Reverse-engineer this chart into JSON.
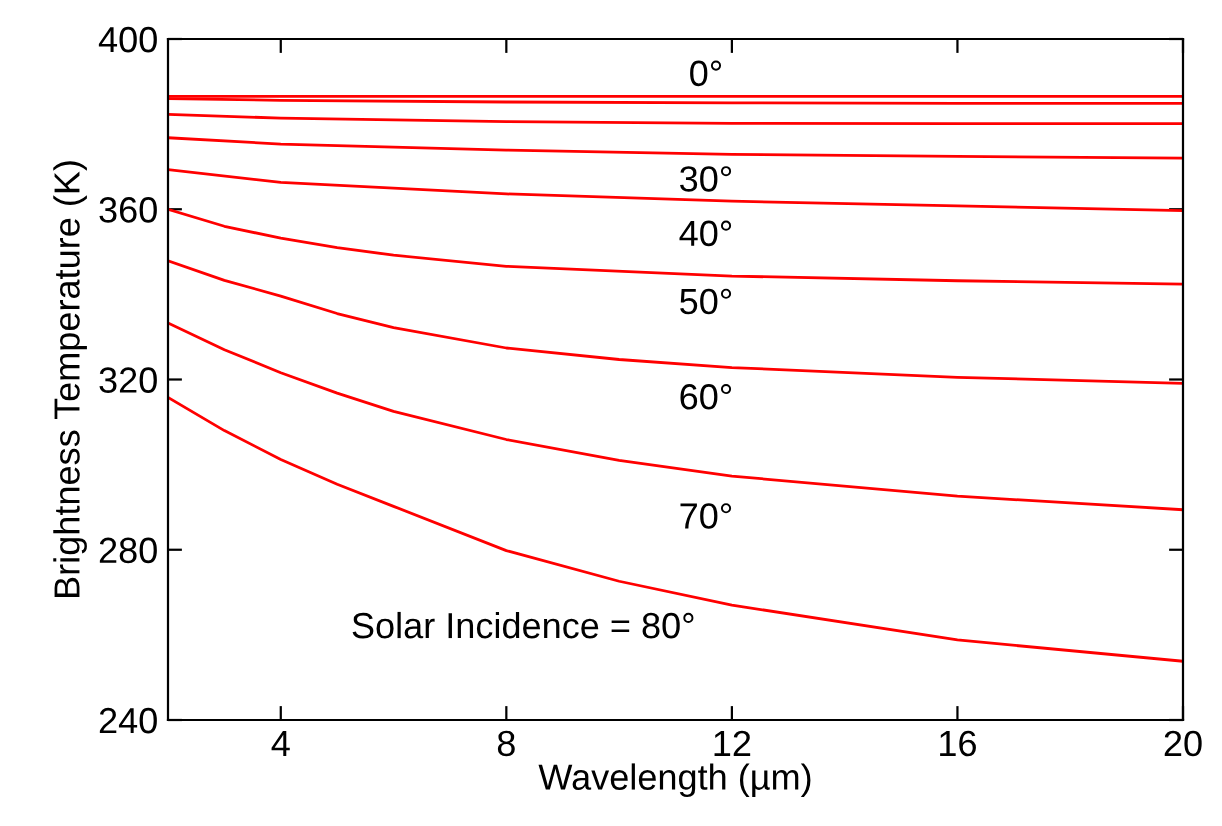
{
  "chart_data": {
    "type": "line",
    "xlabel": "Wavelength (µm)",
    "ylabel": "Brightness Temperature (K)",
    "xlim": [
      2,
      20
    ],
    "ylim": [
      240,
      400
    ],
    "xticks": [
      4,
      8,
      12,
      16,
      20
    ],
    "yticks": [
      240,
      280,
      320,
      360,
      400
    ],
    "grid": false,
    "legend": false,
    "marker": "none",
    "line_style": "solid",
    "series": [
      {
        "color": "#ff0000",
        "x": [
          2,
          4,
          8,
          12,
          16,
          20
        ],
        "values": [
          386.5,
          386.5,
          386.5,
          386.5,
          386.5,
          386.5
        ]
      },
      {
        "color": "#ff0000",
        "x": [
          2,
          4,
          8,
          12,
          16,
          20
        ],
        "values": [
          386,
          385.6,
          385.2,
          385,
          384.9,
          384.9
        ]
      },
      {
        "color": "#ff0000",
        "x": [
          2,
          4,
          8,
          12,
          16,
          20
        ],
        "values": [
          382.3,
          381.4,
          380.6,
          380.2,
          380.1,
          380.1
        ]
      },
      {
        "color": "#ff0000",
        "x": [
          2,
          4,
          8,
          12,
          16,
          20
        ],
        "values": [
          376.8,
          375.3,
          373.9,
          372.9,
          372.4,
          372.0
        ]
      },
      {
        "color": "#ff0000",
        "x": [
          2,
          4,
          8,
          12,
          16,
          20
        ],
        "values": [
          369.3,
          366.3,
          363.6,
          361.9,
          360.8,
          359.7
        ]
      },
      {
        "color": "#ff0000",
        "x": [
          2,
          3,
          4,
          5,
          6,
          8,
          12,
          16,
          20
        ],
        "values": [
          360,
          356,
          353.2,
          351,
          349.2,
          346.6,
          344.3,
          343.2,
          342.4
        ]
      },
      {
        "color": "#ff0000",
        "x": [
          2,
          3,
          4,
          5,
          6,
          8,
          10,
          12,
          16,
          20
        ],
        "values": [
          347.9,
          343.3,
          339.6,
          335.5,
          332.2,
          327.4,
          324.7,
          322.8,
          320.5,
          319.1
        ]
      },
      {
        "color": "#ff0000",
        "x": [
          2,
          3,
          4,
          5,
          6,
          8,
          10,
          12,
          16,
          20
        ],
        "values": [
          333.3,
          327,
          321.6,
          316.8,
          312.5,
          305.9,
          301,
          297.3,
          292.6,
          289.4
        ]
      },
      {
        "color": "#ff0000",
        "x": [
          2,
          3,
          4,
          5,
          6,
          8,
          10,
          12,
          16,
          20
        ],
        "values": [
          315.8,
          308,
          301.2,
          295.4,
          290.2,
          279.8,
          272.6,
          267.0,
          258.8,
          253.8
        ]
      }
    ],
    "annotations": [
      "0°",
      "30°",
      "40°",
      "50°",
      "60°",
      "70°",
      "Solar Incidence = 80°"
    ]
  }
}
